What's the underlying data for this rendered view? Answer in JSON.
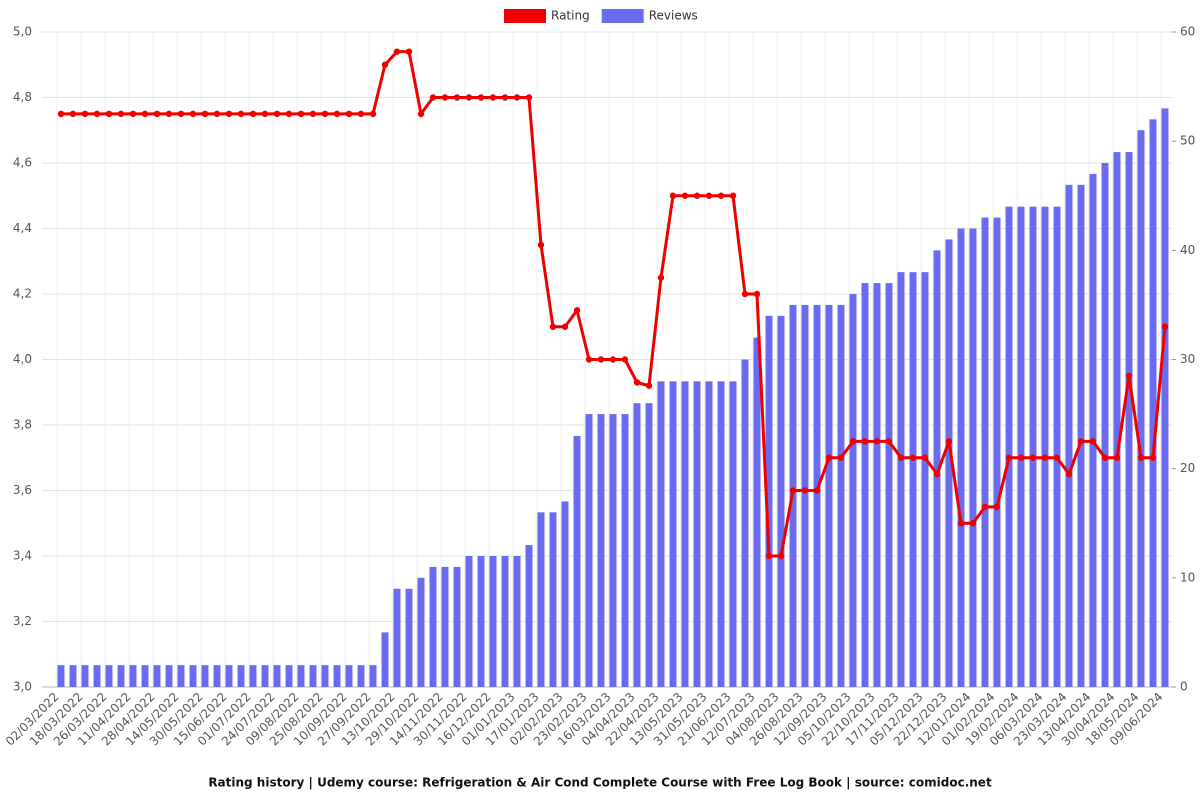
{
  "chart_data": {
    "type": "bar-line",
    "title": "Rating history | Udemy course: Refrigeration & Air Cond Complete Course with Free Log Book | source: comidoc.net",
    "categories": [
      "02/03/2022",
      null,
      "18/03/2022",
      null,
      "26/03/2022",
      null,
      "11/04/2022",
      null,
      "28/04/2022",
      null,
      "14/05/2022",
      null,
      "30/05/2022",
      null,
      "15/06/2022",
      null,
      "01/07/2022",
      null,
      "24/07/2022",
      null,
      "09/08/2022",
      null,
      "25/08/2022",
      null,
      "10/09/2022",
      null,
      "27/09/2022",
      null,
      "13/10/2022",
      null,
      "29/10/2022",
      null,
      "14/11/2022",
      null,
      "30/11/2022",
      null,
      "16/12/2022",
      null,
      "01/01/2023",
      null,
      "17/01/2023",
      null,
      "02/02/2023",
      null,
      "23/02/2023",
      null,
      "16/03/2023",
      null,
      "04/04/2023",
      null,
      "22/04/2023",
      null,
      "13/05/2023",
      null,
      "31/05/2023",
      null,
      "21/06/2023",
      null,
      "12/07/2023",
      null,
      "04/08/2023",
      null,
      "26/08/2023",
      null,
      "12/09/2023",
      null,
      "05/10/2023",
      null,
      "22/10/2023",
      null,
      "17/11/2023",
      null,
      "05/12/2023",
      null,
      "22/12/2023",
      null,
      "12/01/2024",
      null,
      "01/02/2024",
      null,
      "19/02/2024",
      null,
      "06/03/2024",
      null,
      "23/03/2024",
      null,
      "13/04/2024",
      null,
      "30/04/2024",
      null,
      "18/05/2024",
      null,
      "09/06/2024"
    ],
    "series": [
      {
        "name": "Rating",
        "kind": "line",
        "color": "#ee0000",
        "axis": "y",
        "values": [
          4.75,
          4.75,
          4.75,
          4.75,
          4.75,
          4.75,
          4.75,
          4.75,
          4.75,
          4.75,
          4.75,
          4.75,
          4.75,
          4.75,
          4.75,
          4.75,
          4.75,
          4.75,
          4.75,
          4.75,
          4.75,
          4.75,
          4.75,
          4.75,
          4.75,
          4.75,
          4.75,
          4.9,
          4.94,
          4.94,
          4.75,
          4.8,
          4.8,
          4.8,
          4.8,
          4.8,
          4.8,
          4.8,
          4.8,
          4.8,
          4.35,
          4.1,
          4.1,
          4.15,
          4.0,
          4.0,
          4.0,
          4.0,
          3.93,
          3.92,
          4.25,
          4.5,
          4.5,
          4.5,
          4.5,
          4.5,
          4.5,
          4.2,
          4.2,
          3.4,
          3.4,
          3.6,
          3.6,
          3.6,
          3.7,
          3.7,
          3.75,
          3.75,
          3.75,
          3.75,
          3.7,
          3.7,
          3.7,
          3.65,
          3.75,
          3.5,
          3.5,
          3.55,
          3.55,
          3.7,
          3.7,
          3.7,
          3.7,
          3.7,
          3.65,
          3.75,
          3.75,
          3.7,
          3.7,
          3.95,
          3.7,
          3.7,
          4.1
        ]
      },
      {
        "name": "Reviews",
        "kind": "bar",
        "color": "#6b6bef",
        "axis": "y2",
        "values": [
          2,
          2,
          2,
          2,
          2,
          2,
          2,
          2,
          2,
          2,
          2,
          2,
          2,
          2,
          2,
          2,
          2,
          2,
          2,
          2,
          2,
          2,
          2,
          2,
          2,
          2,
          2,
          5,
          9,
          9,
          10,
          11,
          11,
          11,
          12,
          12,
          12,
          12,
          12,
          13,
          16,
          16,
          17,
          23,
          25,
          25,
          25,
          25,
          26,
          26,
          28,
          28,
          28,
          28,
          28,
          28,
          28,
          30,
          32,
          34,
          34,
          35,
          35,
          35,
          35,
          35,
          36,
          37,
          37,
          37,
          38,
          38,
          38,
          40,
          41,
          42,
          42,
          43,
          43,
          44,
          44,
          44,
          44,
          44,
          46,
          46,
          47,
          48,
          49,
          49,
          51,
          52,
          53
        ]
      }
    ],
    "ylim": [
      3,
      5
    ],
    "yticks": [
      {
        "value": 3,
        "label": "3,0"
      },
      {
        "value": 3.2,
        "label": "3,2"
      },
      {
        "value": 3.4,
        "label": "3,4"
      },
      {
        "value": 3.6,
        "label": "3,6"
      },
      {
        "value": 3.8,
        "label": "3,8"
      },
      {
        "value": 4,
        "label": "4,0"
      },
      {
        "value": 4.2,
        "label": "4,2"
      },
      {
        "value": 4.4,
        "label": "4,4"
      },
      {
        "value": 4.6,
        "label": "4,6"
      },
      {
        "value": 4.8,
        "label": "4,8"
      },
      {
        "value": 5,
        "label": "5,0"
      }
    ],
    "y2lim": [
      0,
      60
    ],
    "y2ticks": [
      0,
      10,
      20,
      30,
      40,
      50,
      60
    ],
    "grid": true
  }
}
